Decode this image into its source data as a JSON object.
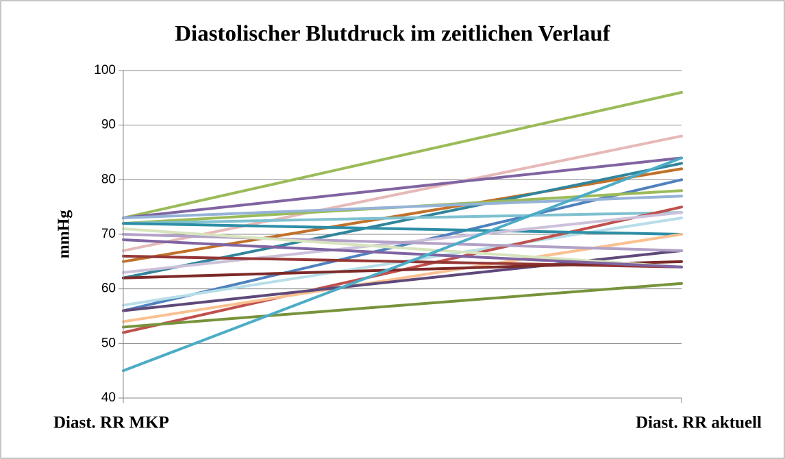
{
  "chart_data": {
    "type": "line",
    "title": "Diastolischer Blutdruck im zeitlichen Verlauf",
    "ylabel": "mmHg",
    "categories": [
      "Diast. RR MKP",
      "Diast. RR aktuell"
    ],
    "ylim": [
      40,
      100
    ],
    "yticks": [
      40,
      50,
      60,
      70,
      80,
      90,
      100
    ],
    "grid": true,
    "series": [
      {
        "color": "#9bbb59",
        "values": [
          73,
          96
        ]
      },
      {
        "color": "#e6b9b8",
        "values": [
          67,
          88
        ]
      },
      {
        "color": "#8064a2",
        "values": [
          73,
          84
        ]
      },
      {
        "color": "#c0712a",
        "values": [
          65,
          82
        ]
      },
      {
        "color": "#31859c",
        "values": [
          62,
          83
        ]
      },
      {
        "color": "#4f81bd",
        "values": [
          56,
          80
        ]
      },
      {
        "color": "#9bbb59",
        "values": [
          72,
          78
        ]
      },
      {
        "color": "#95b3d7",
        "values": [
          73,
          77
        ]
      },
      {
        "color": "#7fc1d0",
        "values": [
          72,
          74
        ]
      },
      {
        "color": "#b7dee8",
        "values": [
          57,
          73
        ]
      },
      {
        "color": "#c0504d",
        "values": [
          52,
          75
        ]
      },
      {
        "color": "#2d8ea6",
        "values": [
          72,
          70
        ]
      },
      {
        "color": "#fac090",
        "values": [
          54,
          70
        ]
      },
      {
        "color": "#ccc1da",
        "values": [
          63,
          74
        ]
      },
      {
        "color": "#5f497a",
        "values": [
          56,
          67
        ]
      },
      {
        "color": "#b2a1c7",
        "values": [
          70,
          67
        ]
      },
      {
        "color": "#953735",
        "values": [
          66,
          64
        ]
      },
      {
        "color": "#7d2a28",
        "values": [
          62,
          65
        ]
      },
      {
        "color": "#d7e4bd",
        "values": [
          71,
          64
        ]
      },
      {
        "color": "#8064a2",
        "values": [
          69,
          64
        ]
      },
      {
        "color": "#77933c",
        "values": [
          53,
          61
        ]
      },
      {
        "color": "#4bacc6",
        "values": [
          45,
          84
        ]
      }
    ]
  }
}
